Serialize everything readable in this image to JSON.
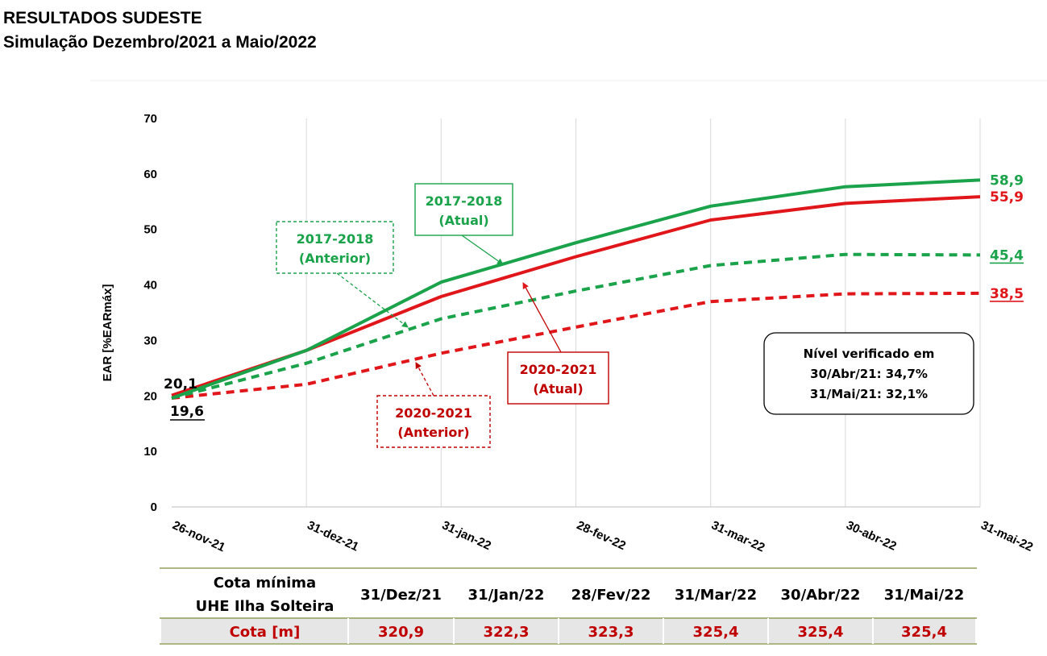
{
  "title": "RESULTADOS SUDESTE",
  "subtitle": "Simulação Dezembro/2021 a Maio/2022",
  "chart_data": {
    "type": "line",
    "ylabel": "EAR [%EARmáx]",
    "ylim": [
      0,
      70
    ],
    "yticks": [
      "0",
      "10",
      "20",
      "30",
      "40",
      "50",
      "60",
      "70"
    ],
    "categories": [
      "26-nov-21",
      "31-dez-21",
      "31-jan-22",
      "28-fev-22",
      "31-mar-22",
      "30-abr-22",
      "31-mai-22"
    ],
    "grid": "vertical",
    "series": [
      {
        "key": "atual_1718",
        "color": "#1aa34a",
        "dashed": false,
        "values": [
          19.6,
          28.2,
          40.5,
          47.6,
          54.2,
          57.7,
          58.9
        ],
        "end_label": "58,9"
      },
      {
        "key": "atual_2021",
        "color": "#e0161b",
        "dashed": false,
        "values": [
          20.1,
          28.2,
          37.9,
          45.1,
          51.7,
          54.7,
          55.9
        ],
        "end_label": "55,9"
      },
      {
        "key": "ant_1718",
        "color": "#1aa34a",
        "dashed": true,
        "values": [
          19.6,
          25.9,
          33.9,
          38.9,
          43.5,
          45.5,
          45.4
        ],
        "end_label": "45,4"
      },
      {
        "key": "ant_2021",
        "color": "#e0161b",
        "dashed": true,
        "values": [
          19.6,
          22.1,
          27.7,
          32.4,
          37.0,
          38.4,
          38.5
        ],
        "end_label": "38,5"
      }
    ],
    "start_labels": {
      "top": "20,1",
      "bottom": "19,6"
    },
    "annotations": {
      "atual_1718": [
        "2017-2018",
        "(Atual)"
      ],
      "ant_1718": [
        "2017-2018",
        "(Anterior)"
      ],
      "atual_2021": [
        "2020-2021",
        "(Atual)"
      ],
      "ant_2021": [
        "2020-2021",
        "(Anterior)"
      ]
    },
    "info_box": [
      "Nível verificado em",
      "30/Abr/21: 34,7%",
      "31/Mai/21: 32,1%"
    ]
  },
  "table": {
    "header_label": [
      "Cota mínima",
      "UHE Ilha Solteira"
    ],
    "columns": [
      "31/Dez/21",
      "31/Jan/22",
      "28/Fev/22",
      "31/Mar/22",
      "30/Abr/22",
      "31/Mai/22"
    ],
    "row_label": "Cota [m]",
    "values": [
      "320,9",
      "322,3",
      "323,3",
      "325,4",
      "325,4",
      "325,4"
    ]
  },
  "colors": {
    "green": "#1aa34a",
    "red": "#e0161b",
    "dark_red": "#c00000",
    "row_bg": "#e6e6e6"
  }
}
